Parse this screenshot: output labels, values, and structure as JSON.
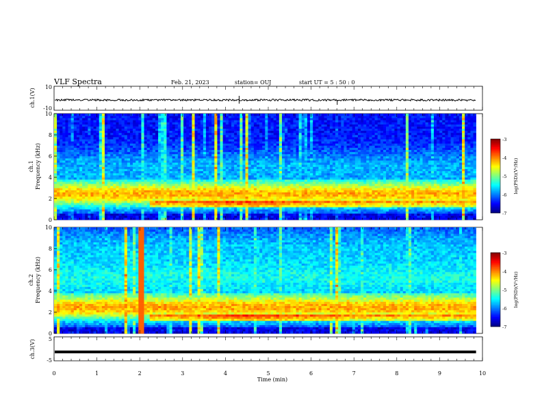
{
  "header": {
    "title": "VLF Spectra",
    "date": "Feb. 21, 2023",
    "station": "station= OUJ",
    "start": "start  UT =   5 : 50 : 0"
  },
  "chart_data": [
    {
      "type": "line",
      "name": "ch1-waveform",
      "ylabel": "ch.1(V)",
      "ylim": [
        -10,
        10
      ],
      "y_tick_labels": [
        "10",
        "-10"
      ],
      "xlim": [
        0,
        10
      ],
      "baseline": -1.5,
      "spikes": [
        {
          "x": 4.32,
          "y": 2.0
        },
        {
          "x": 4.32,
          "y": -4.5
        },
        {
          "x": 6.61,
          "y": -5.5
        }
      ]
    },
    {
      "type": "heatmap",
      "name": "ch1-spectrogram",
      "ylabel": "ch.1\nFrequency (kHz)",
      "xlim": [
        0,
        10
      ],
      "ylim": [
        0,
        10
      ],
      "data_end_min": 9.85,
      "y_ticks": [
        0,
        2,
        4,
        6,
        8,
        10
      ],
      "colorbar": {
        "label": "log(PSD)(V²/Hz)",
        "range": [
          -7,
          -3
        ],
        "ticks": [
          "-3",
          "-4",
          "-5",
          "-6",
          "-7"
        ]
      }
    },
    {
      "type": "heatmap",
      "name": "ch2-spectrogram",
      "ylabel": "ch.2\nFrequency (kHz)",
      "xlim": [
        0,
        10
      ],
      "ylim": [
        0,
        10
      ],
      "data_end_min": 9.85,
      "y_ticks": [
        0,
        2,
        4,
        6,
        8,
        10
      ],
      "colorbar": {
        "label": "log(PSD)(V²/Hz)",
        "range": [
          -7,
          -3
        ],
        "ticks": [
          "-3",
          "-4",
          "-5",
          "-6",
          "-7"
        ]
      }
    },
    {
      "type": "line",
      "name": "ch3-waveform",
      "ylabel": "ch.3(V)",
      "ylim": [
        -5,
        5
      ],
      "y_tick_labels": [
        "5",
        "-5"
      ],
      "xlim": [
        0,
        10
      ],
      "baseline": -1.3
    }
  ],
  "x_axis": {
    "label": "Time (min)",
    "ticks": [
      "0",
      "1",
      "2",
      "3",
      "4",
      "5",
      "6",
      "7",
      "8",
      "9",
      "10"
    ]
  }
}
